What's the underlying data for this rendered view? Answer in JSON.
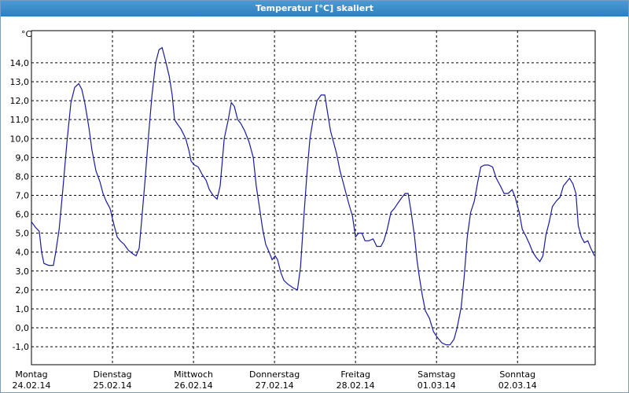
{
  "chart_data": {
    "type": "line",
    "title": "Temperatur [°C] skaliert",
    "y_label": "°C",
    "grid": true,
    "color": "#1a1aa0",
    "xlim": [
      0,
      167
    ],
    "ylim": [
      -1.95,
      15.7
    ],
    "xticks": [
      {
        "value": 0,
        "label": "Montag",
        "date": "24.02.14"
      },
      {
        "value": 24,
        "label": "Dienstag",
        "date": "25.02.14"
      },
      {
        "value": 48,
        "label": "Mittwoch",
        "date": "26.02.14"
      },
      {
        "value": 72,
        "label": "Donnerstag",
        "date": "27.02.14"
      },
      {
        "value": 96,
        "label": "Freitag",
        "date": "28.02.14"
      },
      {
        "value": 120,
        "label": "Samstag",
        "date": "01.03.14"
      },
      {
        "value": 144,
        "label": "Sonntag",
        "date": "02.03.14"
      }
    ],
    "yticks": [
      {
        "value": -1,
        "label": "-1,0"
      },
      {
        "value": 0,
        "label": "0,0"
      },
      {
        "value": 1,
        "label": "1,0"
      },
      {
        "value": 2,
        "label": "2,0"
      },
      {
        "value": 3,
        "label": "3,0"
      },
      {
        "value": 4,
        "label": "4,0"
      },
      {
        "value": 5,
        "label": "5,0"
      },
      {
        "value": 6,
        "label": "6,0"
      },
      {
        "value": 7,
        "label": "7,0"
      },
      {
        "value": 8,
        "label": "8,0"
      },
      {
        "value": 9,
        "label": "9,0"
      },
      {
        "value": 10,
        "label": "10,0"
      },
      {
        "value": 11,
        "label": "11,0"
      },
      {
        "value": 12,
        "label": "12,0"
      },
      {
        "value": 13,
        "label": "13,0"
      },
      {
        "value": 14,
        "label": "14,0"
      }
    ],
    "x": [
      0,
      1.2,
      2.3,
      3.0,
      3.7,
      5.1,
      6.5,
      7.2,
      8.2,
      9.3,
      10.5,
      11.7,
      12.8,
      14.0,
      14.9,
      15.8,
      17.0,
      17.9,
      19.1,
      20.3,
      21.2,
      22.1,
      23.3,
      24.5,
      25.4,
      26.3,
      27.5,
      28.7,
      30.1,
      31.0,
      31.9,
      32.6,
      33.6,
      34.7,
      35.7,
      36.8,
      37.8,
      38.7,
      39.6,
      40.8,
      41.7,
      42.4,
      43.1,
      44.3,
      45.7,
      46.6,
      47.3,
      48.3,
      49.4,
      50.6,
      51.7,
      52.7,
      53.8,
      55.0,
      55.9,
      57.1,
      58.3,
      59.2,
      60.1,
      61.1,
      62.0,
      63.2,
      64.5,
      65.7,
      66.6,
      67.6,
      68.5,
      69.4,
      70.4,
      71.3,
      72.2,
      72.9,
      73.9,
      74.8,
      76.0,
      77.6,
      78.8,
      79.7,
      80.6,
      81.6,
      82.5,
      83.7,
      84.6,
      85.8,
      86.9,
      87.6,
      88.6,
      89.5,
      90.4,
      91.4,
      92.3,
      93.2,
      94.1,
      95.1,
      96.0,
      96.9,
      97.9,
      98.8,
      100.0,
      101.2,
      102.3,
      103.5,
      104.4,
      105.4,
      106.5,
      107.5,
      108.6,
      109.8,
      110.7,
      111.6,
      112.5,
      113.5,
      114.2,
      114.9,
      115.8,
      116.7,
      117.9,
      119.1,
      120.2,
      121.6,
      122.8,
      124.0,
      125.2,
      126.1,
      127.3,
      128.2,
      129.1,
      130.1,
      131.2,
      132.2,
      133.1,
      134.2,
      135.4,
      136.6,
      137.7,
      138.9,
      140.0,
      141.2,
      142.4,
      143.3,
      144.5,
      145.4,
      146.6,
      147.6,
      148.5,
      149.6,
      150.6,
      151.5,
      152.4,
      153.4,
      154.3,
      155.5,
      156.6,
      157.6,
      158.5,
      159.4,
      160.4,
      161.3,
      162.0,
      162.9,
      163.8,
      164.8,
      165.7,
      166.8
    ],
    "values": [
      5.6,
      5.3,
      5.1,
      4.0,
      3.4,
      3.3,
      3.3,
      4.0,
      5.2,
      7.3,
      9.8,
      11.9,
      12.7,
      12.9,
      12.6,
      11.9,
      10.6,
      9.4,
      8.3,
      7.7,
      7.1,
      6.7,
      6.3,
      5.4,
      4.8,
      4.6,
      4.4,
      4.1,
      3.9,
      3.8,
      4.2,
      5.6,
      7.7,
      10.2,
      12.3,
      14.0,
      14.7,
      14.8,
      14.2,
      13.3,
      12.3,
      11.0,
      10.8,
      10.5,
      10.0,
      9.4,
      8.8,
      8.6,
      8.5,
      8.1,
      7.8,
      7.3,
      7.0,
      6.8,
      7.5,
      10.0,
      11.0,
      11.9,
      11.7,
      11.0,
      10.8,
      10.4,
      9.8,
      9.0,
      7.5,
      6.3,
      5.2,
      4.4,
      4.0,
      3.6,
      3.8,
      3.6,
      2.9,
      2.5,
      2.3,
      2.1,
      2.0,
      3.2,
      5.6,
      8.1,
      10.0,
      11.3,
      12.0,
      12.3,
      12.3,
      11.5,
      10.4,
      9.8,
      9.2,
      8.3,
      7.7,
      7.1,
      6.5,
      5.9,
      4.8,
      5.0,
      5.0,
      4.6,
      4.6,
      4.7,
      4.3,
      4.3,
      4.6,
      5.2,
      6.1,
      6.3,
      6.6,
      6.9,
      7.1,
      7.1,
      6.1,
      4.8,
      3.6,
      2.7,
      1.7,
      0.9,
      0.5,
      -0.2,
      -0.5,
      -0.8,
      -0.9,
      -0.9,
      -0.6,
      0.0,
      1.1,
      2.7,
      4.8,
      6.1,
      6.7,
      7.7,
      8.5,
      8.6,
      8.6,
      8.5,
      7.9,
      7.5,
      7.1,
      7.1,
      7.3,
      6.9,
      6.1,
      5.2,
      4.8,
      4.4,
      4.0,
      3.7,
      3.5,
      3.8,
      4.9,
      5.6,
      6.4,
      6.7,
      6.9,
      7.5,
      7.7,
      7.9,
      7.6,
      7.1,
      5.4,
      4.8,
      4.5,
      4.6,
      4.2,
      3.8
    ]
  }
}
